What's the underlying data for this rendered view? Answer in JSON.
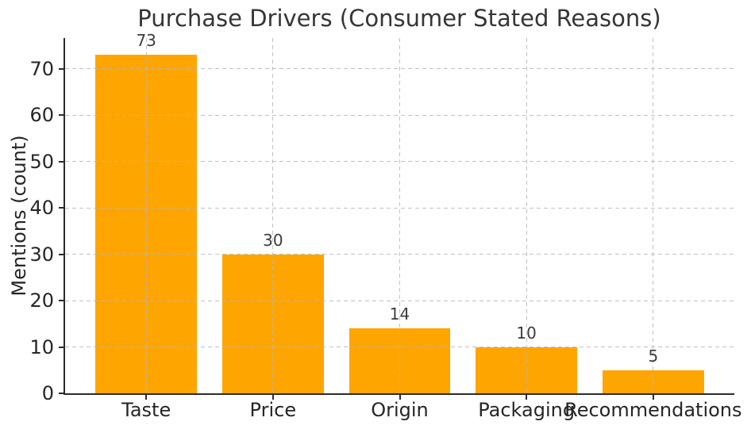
{
  "chart_data": {
    "type": "bar",
    "title": "Purchase Drivers (Consumer Stated Reasons)",
    "xlabel": "",
    "ylabel": "Mentions (count)",
    "categories": [
      "Taste",
      "Price",
      "Origin",
      "Packaging",
      "Recommendations"
    ],
    "values": [
      73,
      30,
      14,
      10,
      5
    ],
    "value_labels": [
      "73",
      "30",
      "14",
      "10",
      "5"
    ],
    "show_value_labels": true,
    "yticks": [
      0,
      10,
      20,
      30,
      40,
      50,
      60,
      70
    ],
    "ylim": [
      0,
      76.65
    ],
    "xlim": [
      -0.64,
      4.64
    ],
    "bar_width": 0.8,
    "bar_color": "#FFA500",
    "grid": {
      "on": true,
      "axis": "both",
      "linestyle": "dashed",
      "color": "#c9c9c9",
      "above_bars": true
    },
    "spine_color": "#2b2b2b",
    "legend": null
  }
}
